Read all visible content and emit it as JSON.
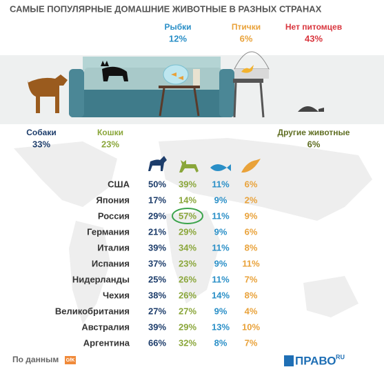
{
  "header": {
    "title": "САМЫЕ ПОПУЛЯРНЫЕ ДОМАШНИЕ ЖИВОТНЫЕ В РАЗНЫХ СТРАНАХ"
  },
  "world": [
    {
      "label": "Собаки",
      "value": "33%"
    },
    {
      "label": "Кошки",
      "value": "23%"
    },
    {
      "label": "Рыбки",
      "value": "12%"
    },
    {
      "label": "Птички",
      "value": "6%"
    },
    {
      "label": "Нет питомцев",
      "value": "43%"
    },
    {
      "label": "Другие животные",
      "value": "6%"
    }
  ],
  "table": {
    "rows": [
      [
        "США",
        "50%",
        "39%",
        "11%",
        "6%"
      ],
      [
        "Япония",
        "17%",
        "14%",
        "9%",
        "2%"
      ],
      [
        "Россия",
        "29%",
        "57%",
        "11%",
        "9%"
      ],
      [
        "Германия",
        "21%",
        "29%",
        "9%",
        "6%"
      ],
      [
        "Италия",
        "39%",
        "34%",
        "11%",
        "8%"
      ],
      [
        "Испания",
        "37%",
        "23%",
        "9%",
        "11%"
      ],
      [
        "Нидерланды",
        "25%",
        "26%",
        "11%",
        "7%"
      ],
      [
        "Чехия",
        "38%",
        "26%",
        "14%",
        "8%"
      ],
      [
        "Великобритания",
        "27%",
        "27%",
        "9%",
        "4%"
      ],
      [
        "Австралия",
        "39%",
        "29%",
        "13%",
        "10%"
      ],
      [
        "Аргентина",
        "66%",
        "32%",
        "8%",
        "7%"
      ]
    ]
  },
  "footer": {
    "source": "По данным",
    "source_logo": "GfK",
    "brand": "ПРАВО",
    "brand_suffix": "RU"
  }
}
